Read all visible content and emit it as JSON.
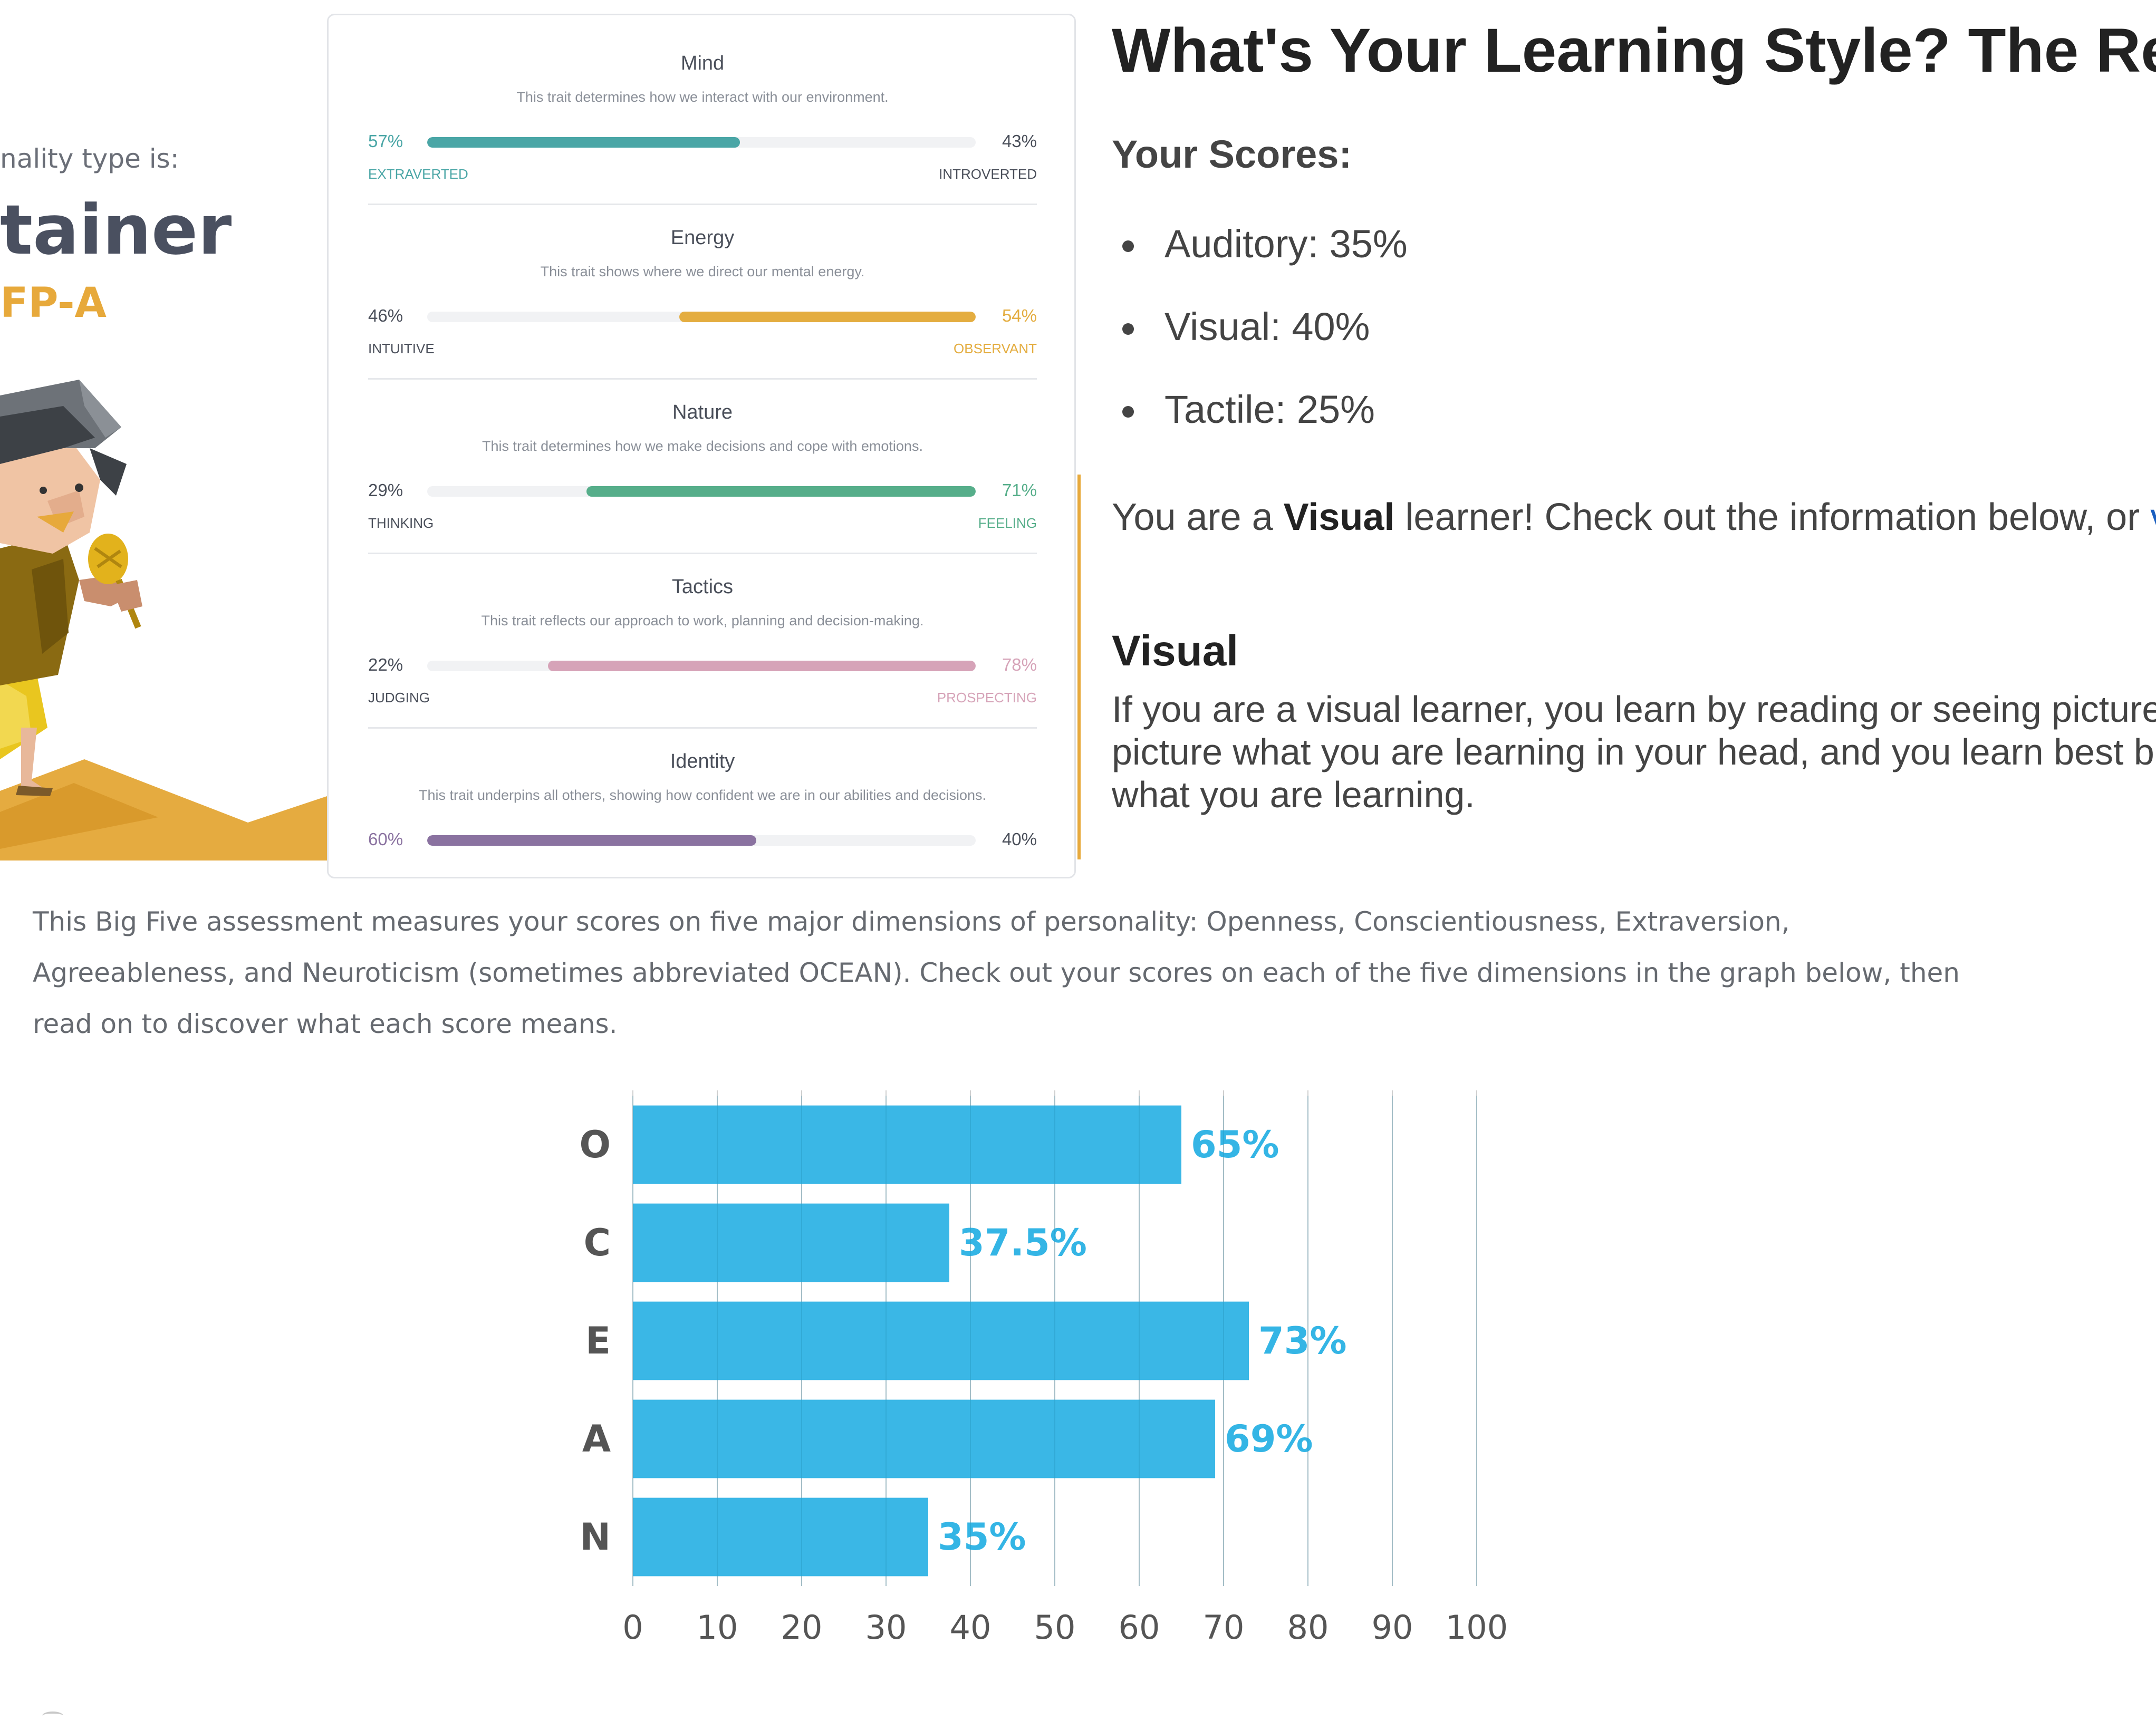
{
  "personality": {
    "intro": "nality type is:",
    "type_name": "tainer",
    "type_code": "FP-A"
  },
  "traits": [
    {
      "title": "Mind",
      "description": "This trait determines how we interact with our environment.",
      "left_pct": "57%",
      "right_pct": "43%",
      "left_label": "EXTRAVERTED",
      "right_label": "INTROVERTED",
      "dominant": "left",
      "fill_fraction": 0.57,
      "color": "#4aa6a6"
    },
    {
      "title": "Energy",
      "description": "This trait shows where we direct our mental energy.",
      "left_pct": "46%",
      "right_pct": "54%",
      "left_label": "INTUITIVE",
      "right_label": "OBSERVANT",
      "dominant": "right",
      "fill_fraction": 0.54,
      "color": "#e4ad40"
    },
    {
      "title": "Nature",
      "description": "This trait determines how we make decisions and cope with emotions.",
      "left_pct": "29%",
      "right_pct": "71%",
      "left_label": "THINKING",
      "right_label": "FEELING",
      "dominant": "right",
      "fill_fraction": 0.71,
      "color": "#56ae8a"
    },
    {
      "title": "Tactics",
      "description": "This trait reflects our approach to work, planning and decision-making.",
      "left_pct": "22%",
      "right_pct": "78%",
      "left_label": "JUDGING",
      "right_label": "PROSPECTING",
      "dominant": "right",
      "fill_fraction": 0.78,
      "color": "#d6a3b8"
    },
    {
      "title": "Identity",
      "description": "This trait underpins all others, showing how confident we are in our abilities and decisions.",
      "left_pct": "60%",
      "right_pct": "40%",
      "left_label": "",
      "right_label": "",
      "dominant": "left",
      "fill_fraction": 0.6,
      "color": "#8a72a0"
    }
  ],
  "learning": {
    "heading": "What's Your Learning Style? The Re",
    "scores_heading": "Your Scores:",
    "scores": [
      "Auditory: 35%",
      "Visual: 40%",
      "Tactile: 25%"
    ],
    "result_prefix": "You are a ",
    "result_bold": "Visual",
    "result_suffix": " learner! Check out the information below, or ",
    "result_link": "vie",
    "section_heading": "Visual",
    "section_lines": [
      "If you are a visual learner, you learn by reading or seeing picture",
      "picture what you are learning in your head, and you learn best b",
      "what you are learning."
    ]
  },
  "bigfive": {
    "intro_lines": [
      "This Big Five assessment measures your scores on five major dimensions of personality: Openness, Conscientiousness, Extraversion,",
      "Agreeableness, and Neuroticism (sometimes abbreviated OCEAN). Check out your scores on each of the five dimensions in the graph below, then",
      "read on to discover what each score means."
    ]
  },
  "chart_data": {
    "type": "bar",
    "orientation": "horizontal",
    "categories": [
      "O",
      "C",
      "E",
      "A",
      "N"
    ],
    "values": [
      65,
      37.5,
      73,
      69,
      35
    ],
    "value_labels": [
      "65%",
      "37.5%",
      "73%",
      "69%",
      "35%"
    ],
    "xlim": [
      0,
      100
    ],
    "x_ticks": [
      "0",
      "10",
      "20",
      "30",
      "40",
      "50",
      "60",
      "70",
      "80",
      "90",
      "100"
    ],
    "grid": true,
    "bar_color": "#34b5e5",
    "label_color": "#34b5e5"
  }
}
